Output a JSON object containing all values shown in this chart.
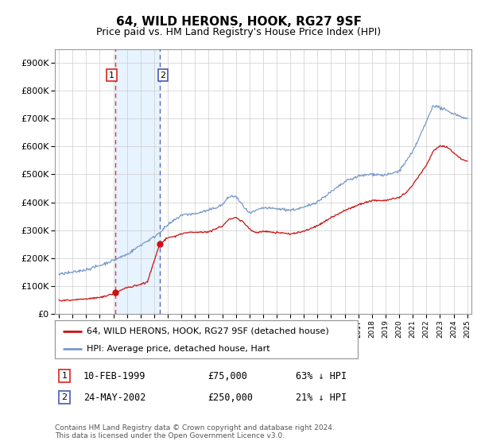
{
  "title": "64, WILD HERONS, HOOK, RG27 9SF",
  "subtitle": "Price paid vs. HM Land Registry's House Price Index (HPI)",
  "legend_line1": "64, WILD HERONS, HOOK, RG27 9SF (detached house)",
  "legend_line2": "HPI: Average price, detached house, Hart",
  "footnote": "Contains HM Land Registry data © Crown copyright and database right 2024.\nThis data is licensed under the Open Government Licence v3.0.",
  "table_rows": [
    {
      "num": "1",
      "date": "10-FEB-1999",
      "price": "£75,000",
      "hpi": "63% ↓ HPI"
    },
    {
      "num": "2",
      "date": "24-MAY-2002",
      "price": "£250,000",
      "hpi": "21% ↓ HPI"
    }
  ],
  "transaction1": {
    "year": 1999.12,
    "price": 75000
  },
  "transaction2": {
    "year": 2002.39,
    "price": 250000
  },
  "vline1_x": 1999.12,
  "vline2_x": 2002.39,
  "vline1_color": "#dd3333",
  "vline2_color": "#5566bb",
  "shade_color": "#ddeeff",
  "hpi_color": "#7799cc",
  "price_color": "#cc1111",
  "ylim_max": 950000,
  "ylim_min": 0,
  "xmin": 1994.7,
  "xmax": 2025.3,
  "background_color": "#ffffff",
  "grid_color": "#cccccc",
  "hpi_segments": [
    [
      1995.0,
      140000
    ],
    [
      1996.0,
      148000
    ],
    [
      1997.0,
      160000
    ],
    [
      1998.0,
      175000
    ],
    [
      1999.0,
      193000
    ],
    [
      2000.0,
      215000
    ],
    [
      2001.0,
      248000
    ],
    [
      2002.0,
      278000
    ],
    [
      2003.0,
      320000
    ],
    [
      2004.0,
      355000
    ],
    [
      2005.0,
      360000
    ],
    [
      2006.0,
      370000
    ],
    [
      2007.0,
      390000
    ],
    [
      2007.5,
      420000
    ],
    [
      2008.0,
      420000
    ],
    [
      2008.5,
      390000
    ],
    [
      2009.0,
      360000
    ],
    [
      2009.5,
      370000
    ],
    [
      2010.0,
      380000
    ],
    [
      2011.0,
      375000
    ],
    [
      2012.0,
      370000
    ],
    [
      2013.0,
      380000
    ],
    [
      2014.0,
      400000
    ],
    [
      2015.0,
      435000
    ],
    [
      2016.0,
      470000
    ],
    [
      2017.0,
      490000
    ],
    [
      2018.0,
      500000
    ],
    [
      2019.0,
      495000
    ],
    [
      2020.0,
      510000
    ],
    [
      2021.0,
      580000
    ],
    [
      2022.0,
      690000
    ],
    [
      2022.5,
      750000
    ],
    [
      2023.0,
      740000
    ],
    [
      2023.5,
      730000
    ],
    [
      2024.0,
      720000
    ],
    [
      2024.5,
      710000
    ],
    [
      2025.0,
      700000
    ]
  ],
  "prop_segments": [
    [
      1995.0,
      50000
    ],
    [
      1996.0,
      52000
    ],
    [
      1997.0,
      55000
    ],
    [
      1998.0,
      60000
    ],
    [
      1999.12,
      75000
    ],
    [
      1999.3,
      80000
    ],
    [
      1999.6,
      88000
    ],
    [
      2000.0,
      95000
    ],
    [
      2000.5,
      100000
    ],
    [
      2001.0,
      108000
    ],
    [
      2001.5,
      115000
    ],
    [
      2002.39,
      250000
    ],
    [
      2002.6,
      260000
    ],
    [
      2003.0,
      275000
    ],
    [
      2003.5,
      280000
    ],
    [
      2004.0,
      290000
    ],
    [
      2005.0,
      295000
    ],
    [
      2006.0,
      295000
    ],
    [
      2007.0,
      315000
    ],
    [
      2007.5,
      340000
    ],
    [
      2008.0,
      345000
    ],
    [
      2008.5,
      330000
    ],
    [
      2009.0,
      305000
    ],
    [
      2009.5,
      290000
    ],
    [
      2010.0,
      295000
    ],
    [
      2011.0,
      290000
    ],
    [
      2012.0,
      285000
    ],
    [
      2013.0,
      295000
    ],
    [
      2014.0,
      315000
    ],
    [
      2015.0,
      345000
    ],
    [
      2016.0,
      370000
    ],
    [
      2017.0,
      390000
    ],
    [
      2018.0,
      405000
    ],
    [
      2019.0,
      405000
    ],
    [
      2020.0,
      415000
    ],
    [
      2020.5,
      430000
    ],
    [
      2021.0,
      460000
    ],
    [
      2022.0,
      530000
    ],
    [
      2022.5,
      580000
    ],
    [
      2023.0,
      600000
    ],
    [
      2023.5,
      595000
    ],
    [
      2024.0,
      575000
    ],
    [
      2024.5,
      555000
    ],
    [
      2025.0,
      545000
    ]
  ]
}
